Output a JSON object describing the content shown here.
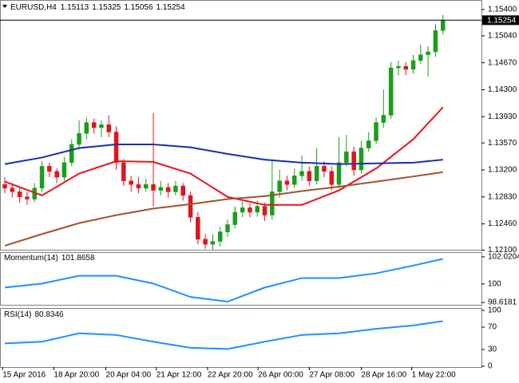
{
  "chart_data": [
    {
      "type": "candlestick",
      "title": "EURUSD,H4",
      "up_color": "#1a9e1a",
      "down_color": "#e0141b",
      "open": [
        1.13,
        1.1295,
        1.129,
        1.1283,
        1.128,
        1.1295,
        1.1325,
        1.1318,
        1.131,
        1.133,
        1.1355,
        1.137,
        1.1385,
        1.1378,
        1.1382,
        1.1372,
        1.133,
        1.1305,
        1.13,
        1.1295,
        1.13,
        1.1292,
        1.1296,
        1.129,
        1.1298,
        1.1285,
        1.1255,
        1.1225,
        1.1218,
        1.1222,
        1.1235,
        1.1245,
        1.1262,
        1.1268,
        1.1262,
        1.127,
        1.1258,
        1.129,
        1.1305,
        1.13,
        1.1312,
        1.1318,
        1.1305,
        1.1325,
        1.1318,
        1.13,
        1.133,
        1.1345,
        1.132,
        1.135,
        1.136,
        1.1385,
        1.1395,
        1.146,
        1.1462,
        1.1458,
        1.147,
        1.1478,
        1.1482,
        1.15113
      ],
      "high": [
        1.131,
        1.1302,
        1.1296,
        1.129,
        1.1302,
        1.1332,
        1.133,
        1.1322,
        1.1338,
        1.1362,
        1.1388,
        1.1392,
        1.139,
        1.1388,
        1.1395,
        1.138,
        1.1335,
        1.1312,
        1.131,
        1.1308,
        1.1398,
        1.1305,
        1.1302,
        1.1305,
        1.1302,
        1.129,
        1.1262,
        1.1232,
        1.1232,
        1.1242,
        1.1252,
        1.127,
        1.1276,
        1.1274,
        1.1278,
        1.1275,
        1.1335,
        1.132,
        1.1312,
        1.1322,
        1.134,
        1.1325,
        1.135,
        1.1332,
        1.1325,
        1.1365,
        1.1368,
        1.1352,
        1.136,
        1.1372,
        1.1392,
        1.143,
        1.1468,
        1.147,
        1.1468,
        1.1478,
        1.1492,
        1.149,
        1.152,
        1.15325
      ],
      "low": [
        1.1288,
        1.1282,
        1.1275,
        1.1272,
        1.1276,
        1.129,
        1.131,
        1.1302,
        1.1305,
        1.1325,
        1.1348,
        1.1362,
        1.137,
        1.1365,
        1.1365,
        1.132,
        1.1298,
        1.129,
        1.1288,
        1.129,
        1.127,
        1.1285,
        1.1282,
        1.1285,
        1.1278,
        1.1248,
        1.1218,
        1.1212,
        1.121,
        1.1215,
        1.1228,
        1.124,
        1.1255,
        1.1255,
        1.1256,
        1.125,
        1.1252,
        1.1282,
        1.1292,
        1.1295,
        1.1305,
        1.1298,
        1.13,
        1.131,
        1.1292,
        1.1295,
        1.1325,
        1.1312,
        1.1315,
        1.1345,
        1.1355,
        1.1378,
        1.139,
        1.145,
        1.145,
        1.1452,
        1.1465,
        1.1448,
        1.1475,
        1.15056
      ],
      "close": [
        1.1295,
        1.129,
        1.1283,
        1.128,
        1.1295,
        1.1325,
        1.1318,
        1.131,
        1.133,
        1.1355,
        1.137,
        1.1385,
        1.1378,
        1.1382,
        1.1372,
        1.133,
        1.1305,
        1.13,
        1.1295,
        1.13,
        1.1292,
        1.1296,
        1.129,
        1.1298,
        1.1285,
        1.1255,
        1.1225,
        1.1218,
        1.1222,
        1.1235,
        1.1245,
        1.1262,
        1.1268,
        1.1262,
        1.127,
        1.1258,
        1.129,
        1.1305,
        1.13,
        1.1312,
        1.1318,
        1.1305,
        1.1325,
        1.1318,
        1.13,
        1.133,
        1.1345,
        1.132,
        1.135,
        1.136,
        1.1385,
        1.1395,
        1.146,
        1.1462,
        1.1458,
        1.147,
        1.1478,
        1.1482,
        1.15113,
        1.15254
      ],
      "series": [
        {
          "color": "#e8141b",
          "x": [
            0,
            5,
            10,
            15,
            20,
            25,
            30,
            35,
            40,
            45,
            50,
            55,
            59
          ],
          "values": [
            1.1304,
            1.1285,
            1.1315,
            1.1332,
            1.1331,
            1.1315,
            1.1283,
            1.1272,
            1.1272,
            1.1292,
            1.1322,
            1.1362,
            1.1406
          ]
        },
        {
          "color": "#1a2ea8",
          "x": [
            0,
            5,
            10,
            15,
            20,
            25,
            30,
            35,
            40,
            45,
            50,
            55,
            59
          ],
          "values": [
            1.1328,
            1.1337,
            1.135,
            1.1355,
            1.1355,
            1.1351,
            1.1342,
            1.1334,
            1.133,
            1.1328,
            1.1329,
            1.133,
            1.1334
          ]
        },
        {
          "color": "#a0522d",
          "x": [
            0,
            5,
            10,
            15,
            20,
            25,
            30,
            35,
            40,
            45,
            50,
            55,
            59
          ],
          "values": [
            1.1216,
            1.1232,
            1.1247,
            1.1258,
            1.1267,
            1.1273,
            1.128,
            1.1284,
            1.1291,
            1.1297,
            1.1304,
            1.1311,
            1.1317
          ]
        }
      ],
      "xlim": [
        -0.65,
        64.19
      ],
      "xticks": [
        {
          "value": -0.3,
          "label": "15 Apr 2016"
        },
        {
          "value": 6.6,
          "label": "18 Apr 20:00"
        },
        {
          "value": 13.6,
          "label": "20 Apr 04:00"
        },
        {
          "value": 20.4,
          "label": "21 Apr 12:00"
        },
        {
          "value": 27.3,
          "label": "22 Apr 20:00"
        },
        {
          "value": 34.1,
          "label": "26 Apr 00:00"
        },
        {
          "value": 41,
          "label": "27 Apr 08:00"
        },
        {
          "value": 48,
          "label": "28 Apr 16:00"
        },
        {
          "value": 54.8,
          "label": "1 May 22:00"
        }
      ],
      "ylim": [
        1.12105,
        1.15531
      ],
      "yticks": [
        {
          "value": 1.154,
          "label": "1.15400"
        },
        {
          "value": 1.1504,
          "label": "1.15040"
        },
        {
          "value": 1.1467,
          "label": "1.14670"
        },
        {
          "value": 1.143,
          "label": "1.14300"
        },
        {
          "value": 1.1393,
          "label": "1.13930"
        },
        {
          "value": 1.1357,
          "label": "1.13570"
        },
        {
          "value": 1.132,
          "label": "1.13200"
        },
        {
          "value": 1.1283,
          "label": "1.12830"
        },
        {
          "value": 1.1246,
          "label": "1.12460"
        },
        {
          "value": 1.121,
          "label": "1.12100"
        }
      ]
    },
    {
      "type": "line",
      "title": "Momentum(14)",
      "series": [
        {
          "color": "#1e90ff",
          "x": [
            0,
            5,
            10,
            15,
            20,
            25,
            30,
            35,
            40,
            45,
            50,
            55,
            59
          ],
          "values": [
            99.73,
            100.03,
            100.61,
            100.61,
            100.03,
            99.03,
            98.68,
            99.73,
            100.44,
            100.44,
            100.79,
            101.37,
            101.8658
          ]
        }
      ],
      "xlim": [
        -0.65,
        64.19
      ],
      "ylim": [
        98.443,
        102.372
      ],
      "yticks": [
        102.0204,
        100,
        98.6181
      ]
    },
    {
      "type": "line",
      "title": "RSI(14)",
      "series": [
        {
          "color": "#1e90ff",
          "x": [
            0,
            5,
            10,
            15,
            20,
            25,
            30,
            35,
            40,
            45,
            50,
            55,
            59
          ],
          "values": [
            41,
            44,
            59,
            56,
            44,
            33,
            31,
            44,
            56,
            59,
            67,
            73,
            80.8346
          ]
        }
      ],
      "xlim": [
        -0.65,
        64.19
      ],
      "ylim": [
        -1.4,
        104.3
      ],
      "yticks": [
        100,
        70,
        30,
        0
      ]
    }
  ]
}
